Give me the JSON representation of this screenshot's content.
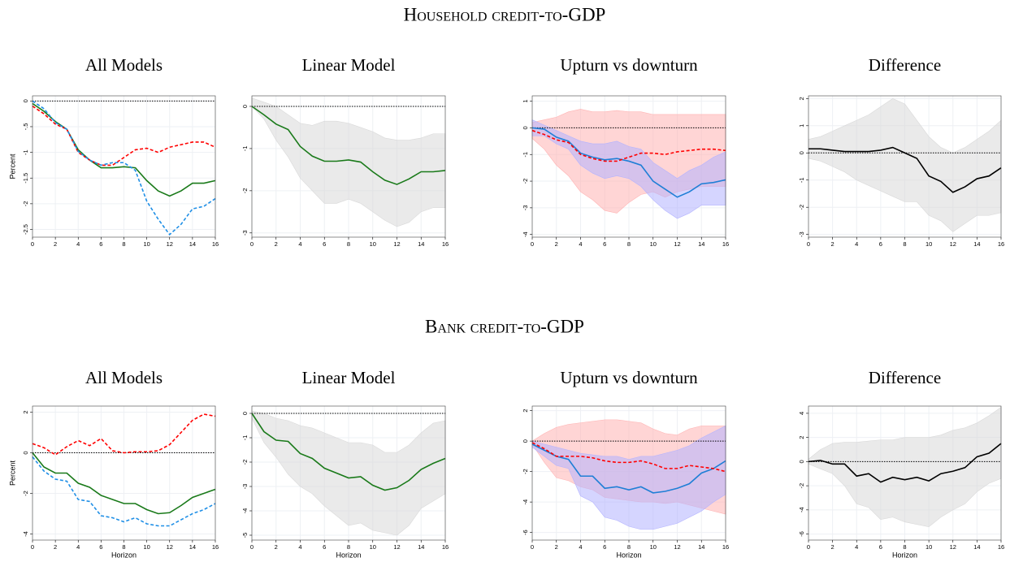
{
  "headings": [
    "Household credit-to-GDP",
    "Bank credit-to-GDP"
  ],
  "chart_data": [
    {
      "type": "line",
      "title": "All Models",
      "ylabel": "Percent",
      "grid": true,
      "reference_line": 0,
      "x": [
        0,
        1,
        2,
        3,
        4,
        5,
        6,
        7,
        8,
        9,
        10,
        11,
        12,
        13,
        14,
        15,
        16
      ],
      "xlim": [
        0,
        16
      ],
      "xticks": [
        0,
        2,
        4,
        6,
        8,
        10,
        12,
        14,
        16
      ],
      "ylim": [
        -2.65,
        0.1
      ],
      "yticks": [
        0,
        {
          "value": -0.5,
          "label": "-.5"
        },
        -1,
        -1.5,
        -2,
        -2.5
      ],
      "bands": [],
      "series": [
        {
          "color": "#1a7a1a",
          "dashed": false,
          "values": [
            -0.05,
            -0.2,
            -0.4,
            -0.55,
            -0.95,
            -1.15,
            -1.3,
            -1.3,
            -1.28,
            -1.3,
            -1.55,
            -1.75,
            -1.85,
            -1.75,
            -1.6,
            -1.6,
            -1.55
          ]
        },
        {
          "color": "#ff0000",
          "dashed": true,
          "values": [
            -0.1,
            -0.25,
            -0.45,
            -0.55,
            -1.0,
            -1.15,
            -1.25,
            -1.25,
            -1.1,
            -0.95,
            -0.92,
            -1.0,
            -0.9,
            -0.85,
            -0.8,
            -0.8,
            -0.9
          ]
        },
        {
          "color": "#1f8fe6",
          "dashed": true,
          "values": [
            0,
            -0.15,
            -0.42,
            -0.55,
            -0.98,
            -1.15,
            -1.25,
            -1.2,
            -1.2,
            -1.35,
            -1.95,
            -2.3,
            -2.6,
            -2.4,
            -2.1,
            -2.05,
            -1.9
          ]
        }
      ]
    },
    {
      "type": "line",
      "title": "Linear Model",
      "grid": true,
      "reference_line": 0,
      "x": [
        0,
        1,
        2,
        3,
        4,
        5,
        6,
        7,
        8,
        9,
        10,
        11,
        12,
        13,
        14,
        15,
        16
      ],
      "xlim": [
        0,
        16
      ],
      "xticks": [
        0,
        2,
        4,
        6,
        8,
        10,
        12,
        14,
        16
      ],
      "ylim": [
        -3.1,
        0.25
      ],
      "yticks": [
        0,
        -1,
        -2,
        -3
      ],
      "bands": [
        {
          "color": "#d9d9d9",
          "lower": [
            0,
            -0.3,
            -0.8,
            -1.2,
            -1.7,
            -2.0,
            -2.3,
            -2.3,
            -2.2,
            -2.3,
            -2.5,
            -2.7,
            -2.85,
            -2.75,
            -2.5,
            -2.4,
            -2.4
          ],
          "upper": [
            0.2,
            0.1,
            0,
            -0.2,
            -0.4,
            -0.45,
            -0.35,
            -0.35,
            -0.4,
            -0.5,
            -0.6,
            -0.75,
            -0.8,
            -0.8,
            -0.75,
            -0.65,
            -0.65
          ]
        }
      ],
      "series": [
        {
          "color": "#1a7a1a",
          "dashed": false,
          "values": [
            0,
            -0.2,
            -0.42,
            -0.55,
            -0.95,
            -1.18,
            -1.3,
            -1.3,
            -1.27,
            -1.32,
            -1.55,
            -1.75,
            -1.85,
            -1.72,
            -1.55,
            -1.55,
            -1.52
          ]
        }
      ]
    },
    {
      "type": "line",
      "title": "Upturn vs downturn",
      "grid": true,
      "reference_line": 0,
      "x": [
        0,
        1,
        2,
        3,
        4,
        5,
        6,
        7,
        8,
        9,
        10,
        11,
        12,
        13,
        14,
        15,
        16
      ],
      "xlim": [
        0,
        16
      ],
      "xticks": [
        0,
        2,
        4,
        6,
        8,
        10,
        12,
        14,
        16
      ],
      "ylim": [
        -4.1,
        1.2
      ],
      "yticks": [
        1,
        0,
        -1,
        -2,
        -3,
        -4
      ],
      "bands": [
        {
          "color": "#ffb3b3",
          "lower": [
            -0.4,
            -0.8,
            -1.4,
            -1.8,
            -2.4,
            -2.7,
            -3.1,
            -3.2,
            -2.8,
            -2.5,
            -2.4,
            -2.6,
            -2.4,
            -2.3,
            -2.2,
            -2.2,
            -2.2
          ],
          "upper": [
            0.2,
            0.3,
            0.4,
            0.6,
            0.7,
            0.6,
            0.6,
            0.65,
            0.6,
            0.6,
            0.5,
            0.5,
            0.5,
            0.5,
            0.5,
            0.5,
            0.5
          ]
        },
        {
          "color": "#b3b3ff",
          "lower": [
            -0.3,
            -0.3,
            -0.6,
            -0.8,
            -1.4,
            -1.7,
            -1.9,
            -1.8,
            -1.9,
            -2.2,
            -2.7,
            -3.1,
            -3.4,
            -3.2,
            -2.9,
            -2.9,
            -2.9
          ],
          "upper": [
            0.3,
            0.1,
            -0.1,
            -0.3,
            -0.5,
            -0.6,
            -0.6,
            -0.5,
            -0.7,
            -0.8,
            -1.3,
            -1.6,
            -1.9,
            -1.6,
            -1.4,
            -1.1,
            -0.9
          ]
        }
      ],
      "series": [
        {
          "color": "#1f7fd6",
          "dashed": false,
          "values": [
            0,
            -0.05,
            -0.35,
            -0.5,
            -0.95,
            -1.1,
            -1.2,
            -1.15,
            -1.25,
            -1.4,
            -2.0,
            -2.3,
            -2.6,
            -2.4,
            -2.1,
            -2.05,
            -1.95
          ]
        },
        {
          "color": "#ff0000",
          "dashed": true,
          "values": [
            -0.1,
            -0.25,
            -0.45,
            -0.55,
            -1.0,
            -1.15,
            -1.25,
            -1.25,
            -1.1,
            -0.95,
            -0.95,
            -1.0,
            -0.9,
            -0.85,
            -0.8,
            -0.8,
            -0.85
          ]
        }
      ]
    },
    {
      "type": "line",
      "title": "Difference",
      "grid": true,
      "reference_line": 0,
      "x": [
        0,
        1,
        2,
        3,
        4,
        5,
        6,
        7,
        8,
        9,
        10,
        11,
        12,
        13,
        14,
        15,
        16
      ],
      "xlim": [
        0,
        16
      ],
      "xticks": [
        0,
        2,
        4,
        6,
        8,
        10,
        12,
        14,
        16
      ],
      "ylim": [
        -3.1,
        2.1
      ],
      "yticks": [
        2,
        1,
        0,
        -1,
        -2,
        -3
      ],
      "bands": [
        {
          "color": "#d9d9d9",
          "lower": [
            -0.2,
            -0.3,
            -0.5,
            -0.7,
            -1.0,
            -1.2,
            -1.4,
            -1.6,
            -1.8,
            -1.8,
            -2.3,
            -2.5,
            -2.9,
            -2.6,
            -2.3,
            -2.3,
            -2.2
          ],
          "upper": [
            0.5,
            0.6,
            0.8,
            1.0,
            1.2,
            1.4,
            1.7,
            2.0,
            1.8,
            1.2,
            0.6,
            0.2,
            0.0,
            0.2,
            0.5,
            0.8,
            1.2
          ]
        }
      ],
      "series": [
        {
          "color": "#000000",
          "dashed": false,
          "values": [
            0.15,
            0.15,
            0.1,
            0.05,
            0.05,
            0.05,
            0.1,
            0.2,
            0.0,
            -0.2,
            -0.85,
            -1.05,
            -1.45,
            -1.25,
            -0.95,
            -0.85,
            -0.55
          ]
        }
      ]
    },
    {
      "type": "line",
      "title": "All Models",
      "ylabel": "Percent",
      "xlabel": "Horizon",
      "grid": true,
      "reference_line": 0,
      "x": [
        0,
        1,
        2,
        3,
        4,
        5,
        6,
        7,
        8,
        9,
        10,
        11,
        12,
        13,
        14,
        15,
        16
      ],
      "xlim": [
        0,
        16
      ],
      "xticks": [
        0,
        2,
        4,
        6,
        8,
        10,
        12,
        14,
        16
      ],
      "ylim": [
        -4.3,
        2.3
      ],
      "yticks": [
        2,
        0,
        -2,
        -4
      ],
      "bands": [],
      "series": [
        {
          "color": "#1a7a1a",
          "dashed": false,
          "values": [
            0,
            -0.7,
            -1.0,
            -1.0,
            -1.5,
            -1.7,
            -2.1,
            -2.3,
            -2.5,
            -2.5,
            -2.8,
            -3.0,
            -2.95,
            -2.6,
            -2.2,
            -2.0,
            -1.8
          ]
        },
        {
          "color": "#ff0000",
          "dashed": true,
          "values": [
            0.45,
            0.25,
            -0.1,
            0.3,
            0.6,
            0.35,
            0.7,
            0.1,
            0.0,
            0.05,
            0.05,
            0.1,
            0.4,
            1.0,
            1.6,
            1.9,
            1.8
          ]
        },
        {
          "color": "#1f8fe6",
          "dashed": true,
          "values": [
            -0.2,
            -0.9,
            -1.3,
            -1.4,
            -2.3,
            -2.4,
            -3.1,
            -3.2,
            -3.4,
            -3.2,
            -3.5,
            -3.6,
            -3.6,
            -3.3,
            -3.0,
            -2.8,
            -2.5
          ]
        }
      ]
    },
    {
      "type": "line",
      "title": "Linear Model",
      "xlabel": "Horizon",
      "grid": true,
      "reference_line": 0,
      "x": [
        0,
        1,
        2,
        3,
        4,
        5,
        6,
        7,
        8,
        9,
        10,
        11,
        12,
        13,
        14,
        15,
        16
      ],
      "xlim": [
        0,
        16
      ],
      "xticks": [
        0,
        2,
        4,
        6,
        8,
        10,
        12,
        14,
        16
      ],
      "ylim": [
        -5.2,
        0.3
      ],
      "yticks": [
        0,
        -1,
        -2,
        -3,
        -4,
        -5
      ],
      "bands": [
        {
          "color": "#d9d9d9",
          "lower": [
            -0.2,
            -1.2,
            -1.8,
            -2.5,
            -3.0,
            -3.3,
            -3.8,
            -4.2,
            -4.6,
            -4.5,
            -4.8,
            -4.9,
            -5.0,
            -4.6,
            -3.9,
            -3.6,
            -3.3
          ],
          "upper": [
            0.1,
            0,
            -0.2,
            -0.3,
            -0.5,
            -0.6,
            -0.8,
            -1.0,
            -1.2,
            -1.2,
            -1.3,
            -1.6,
            -1.6,
            -1.3,
            -0.8,
            -0.4,
            -0.3
          ]
        }
      ],
      "series": [
        {
          "color": "#1a7a1a",
          "dashed": false,
          "values": [
            0,
            -0.75,
            -1.1,
            -1.15,
            -1.65,
            -1.85,
            -2.25,
            -2.45,
            -2.65,
            -2.6,
            -2.95,
            -3.15,
            -3.05,
            -2.75,
            -2.3,
            -2.05,
            -1.85
          ]
        }
      ]
    },
    {
      "type": "line",
      "title": "Upturn vs downturn",
      "xlabel": "Horizon",
      "grid": true,
      "reference_line": 0,
      "x": [
        0,
        1,
        2,
        3,
        4,
        5,
        6,
        7,
        8,
        9,
        10,
        11,
        12,
        13,
        14,
        15,
        16
      ],
      "xlim": [
        0,
        16
      ],
      "xticks": [
        0,
        2,
        4,
        6,
        8,
        10,
        12,
        14,
        16
      ],
      "ylim": [
        -6.5,
        2.3
      ],
      "yticks": [
        2,
        0,
        -2,
        -4,
        -6
      ],
      "bands": [
        {
          "color": "#ffb3b3",
          "lower": [
            -0.2,
            -1.4,
            -2.4,
            -2.6,
            -3.0,
            -3.2,
            -3.7,
            -3.8,
            -3.9,
            -4.0,
            -4.0,
            -4.1,
            -4.0,
            -4.2,
            -4.4,
            -4.6,
            -4.8
          ],
          "upper": [
            0,
            0.5,
            0.9,
            1.1,
            1.2,
            1.3,
            1.4,
            1.4,
            1.3,
            1.2,
            0.8,
            0.5,
            0.4,
            0.8,
            1.0,
            1.0,
            1.0
          ]
        },
        {
          "color": "#b3b3ff",
          "lower": [
            -0.4,
            -1.0,
            -1.6,
            -1.8,
            -3.6,
            -4.0,
            -5.0,
            -5.2,
            -5.6,
            -5.8,
            -5.8,
            -5.6,
            -5.4,
            -5.0,
            -4.6,
            -4.0,
            -3.5
          ],
          "upper": [
            0,
            -0.2,
            -0.4,
            -0.6,
            -0.8,
            -0.9,
            -1.0,
            -1.0,
            -1.2,
            -1.0,
            -1.0,
            -0.8,
            -0.6,
            -0.3,
            0.2,
            0.6,
            1.0
          ]
        }
      ],
      "series": [
        {
          "color": "#1f7fd6",
          "dashed": false,
          "values": [
            -0.2,
            -0.6,
            -1.0,
            -1.2,
            -2.3,
            -2.3,
            -3.1,
            -3.0,
            -3.2,
            -3.0,
            -3.4,
            -3.3,
            -3.1,
            -2.8,
            -2.1,
            -1.8,
            -1.3
          ]
        },
        {
          "color": "#ff0000",
          "dashed": true,
          "values": [
            -0.1,
            -0.5,
            -1.0,
            -1.0,
            -1.0,
            -1.1,
            -1.3,
            -1.4,
            -1.4,
            -1.3,
            -1.5,
            -1.8,
            -1.8,
            -1.6,
            -1.7,
            -1.8,
            -2.0
          ]
        }
      ]
    },
    {
      "type": "line",
      "title": "Difference",
      "xlabel": "Horizon",
      "grid": true,
      "reference_line": 0,
      "x": [
        0,
        1,
        2,
        3,
        4,
        5,
        6,
        7,
        8,
        9,
        10,
        11,
        12,
        13,
        14,
        15,
        16
      ],
      "xlim": [
        0,
        16
      ],
      "xticks": [
        0,
        2,
        4,
        6,
        8,
        10,
        12,
        14,
        16
      ],
      "ylim": [
        -6.5,
        4.6
      ],
      "yticks": [
        4,
        2,
        0,
        -2,
        -4,
        -6
      ],
      "bands": [
        {
          "color": "#d9d9d9",
          "lower": [
            -0.2,
            -0.6,
            -1.0,
            -2.0,
            -3.5,
            -3.8,
            -4.8,
            -4.6,
            -5.0,
            -5.2,
            -5.4,
            -4.6,
            -4.0,
            -3.5,
            -2.5,
            -1.8,
            -1.4
          ],
          "upper": [
            0.2,
            1.0,
            1.5,
            1.6,
            1.6,
            1.7,
            1.8,
            1.8,
            2.0,
            2.0,
            2.0,
            2.2,
            2.6,
            2.8,
            3.2,
            3.8,
            4.5
          ]
        }
      ],
      "series": [
        {
          "color": "#000000",
          "dashed": false,
          "values": [
            0,
            0.1,
            -0.2,
            -0.2,
            -1.2,
            -1.0,
            -1.7,
            -1.3,
            -1.5,
            -1.3,
            -1.6,
            -1.0,
            -0.8,
            -0.5,
            0.4,
            0.7,
            1.5
          ]
        }
      ]
    }
  ]
}
